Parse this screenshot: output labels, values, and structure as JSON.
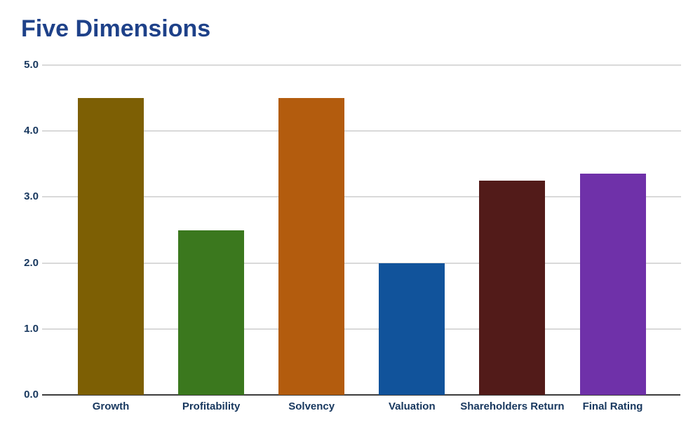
{
  "title": "Five Dimensions",
  "colors": {
    "title_text": "#1e4189",
    "axis_text": "#17375e",
    "gridline": "#d9d9d9",
    "axis_line": "#3c3c3c",
    "background": "#ffffff"
  },
  "chart_data": {
    "type": "bar",
    "title": "Five Dimensions",
    "categories": [
      "Growth",
      "Profitability",
      "Solvency",
      "Valuation",
      "Shareholders Return",
      "Final Rating"
    ],
    "values": [
      4.5,
      2.5,
      4.5,
      2.0,
      3.25,
      3.35
    ],
    "bar_colors": [
      "#7d5f04",
      "#3b781e",
      "#b35c0e",
      "#11539b",
      "#521b19",
      "#6f31a9"
    ],
    "xlabel": "",
    "ylabel": "",
    "ylim": [
      0,
      5
    ],
    "ytick_labels": [
      "0.0",
      "1.0",
      "2.0",
      "3.0",
      "4.0",
      "5.0"
    ],
    "ytick_values": [
      0,
      1,
      2,
      3,
      4,
      5
    ],
    "grid": "horizontal",
    "legend": "none"
  }
}
